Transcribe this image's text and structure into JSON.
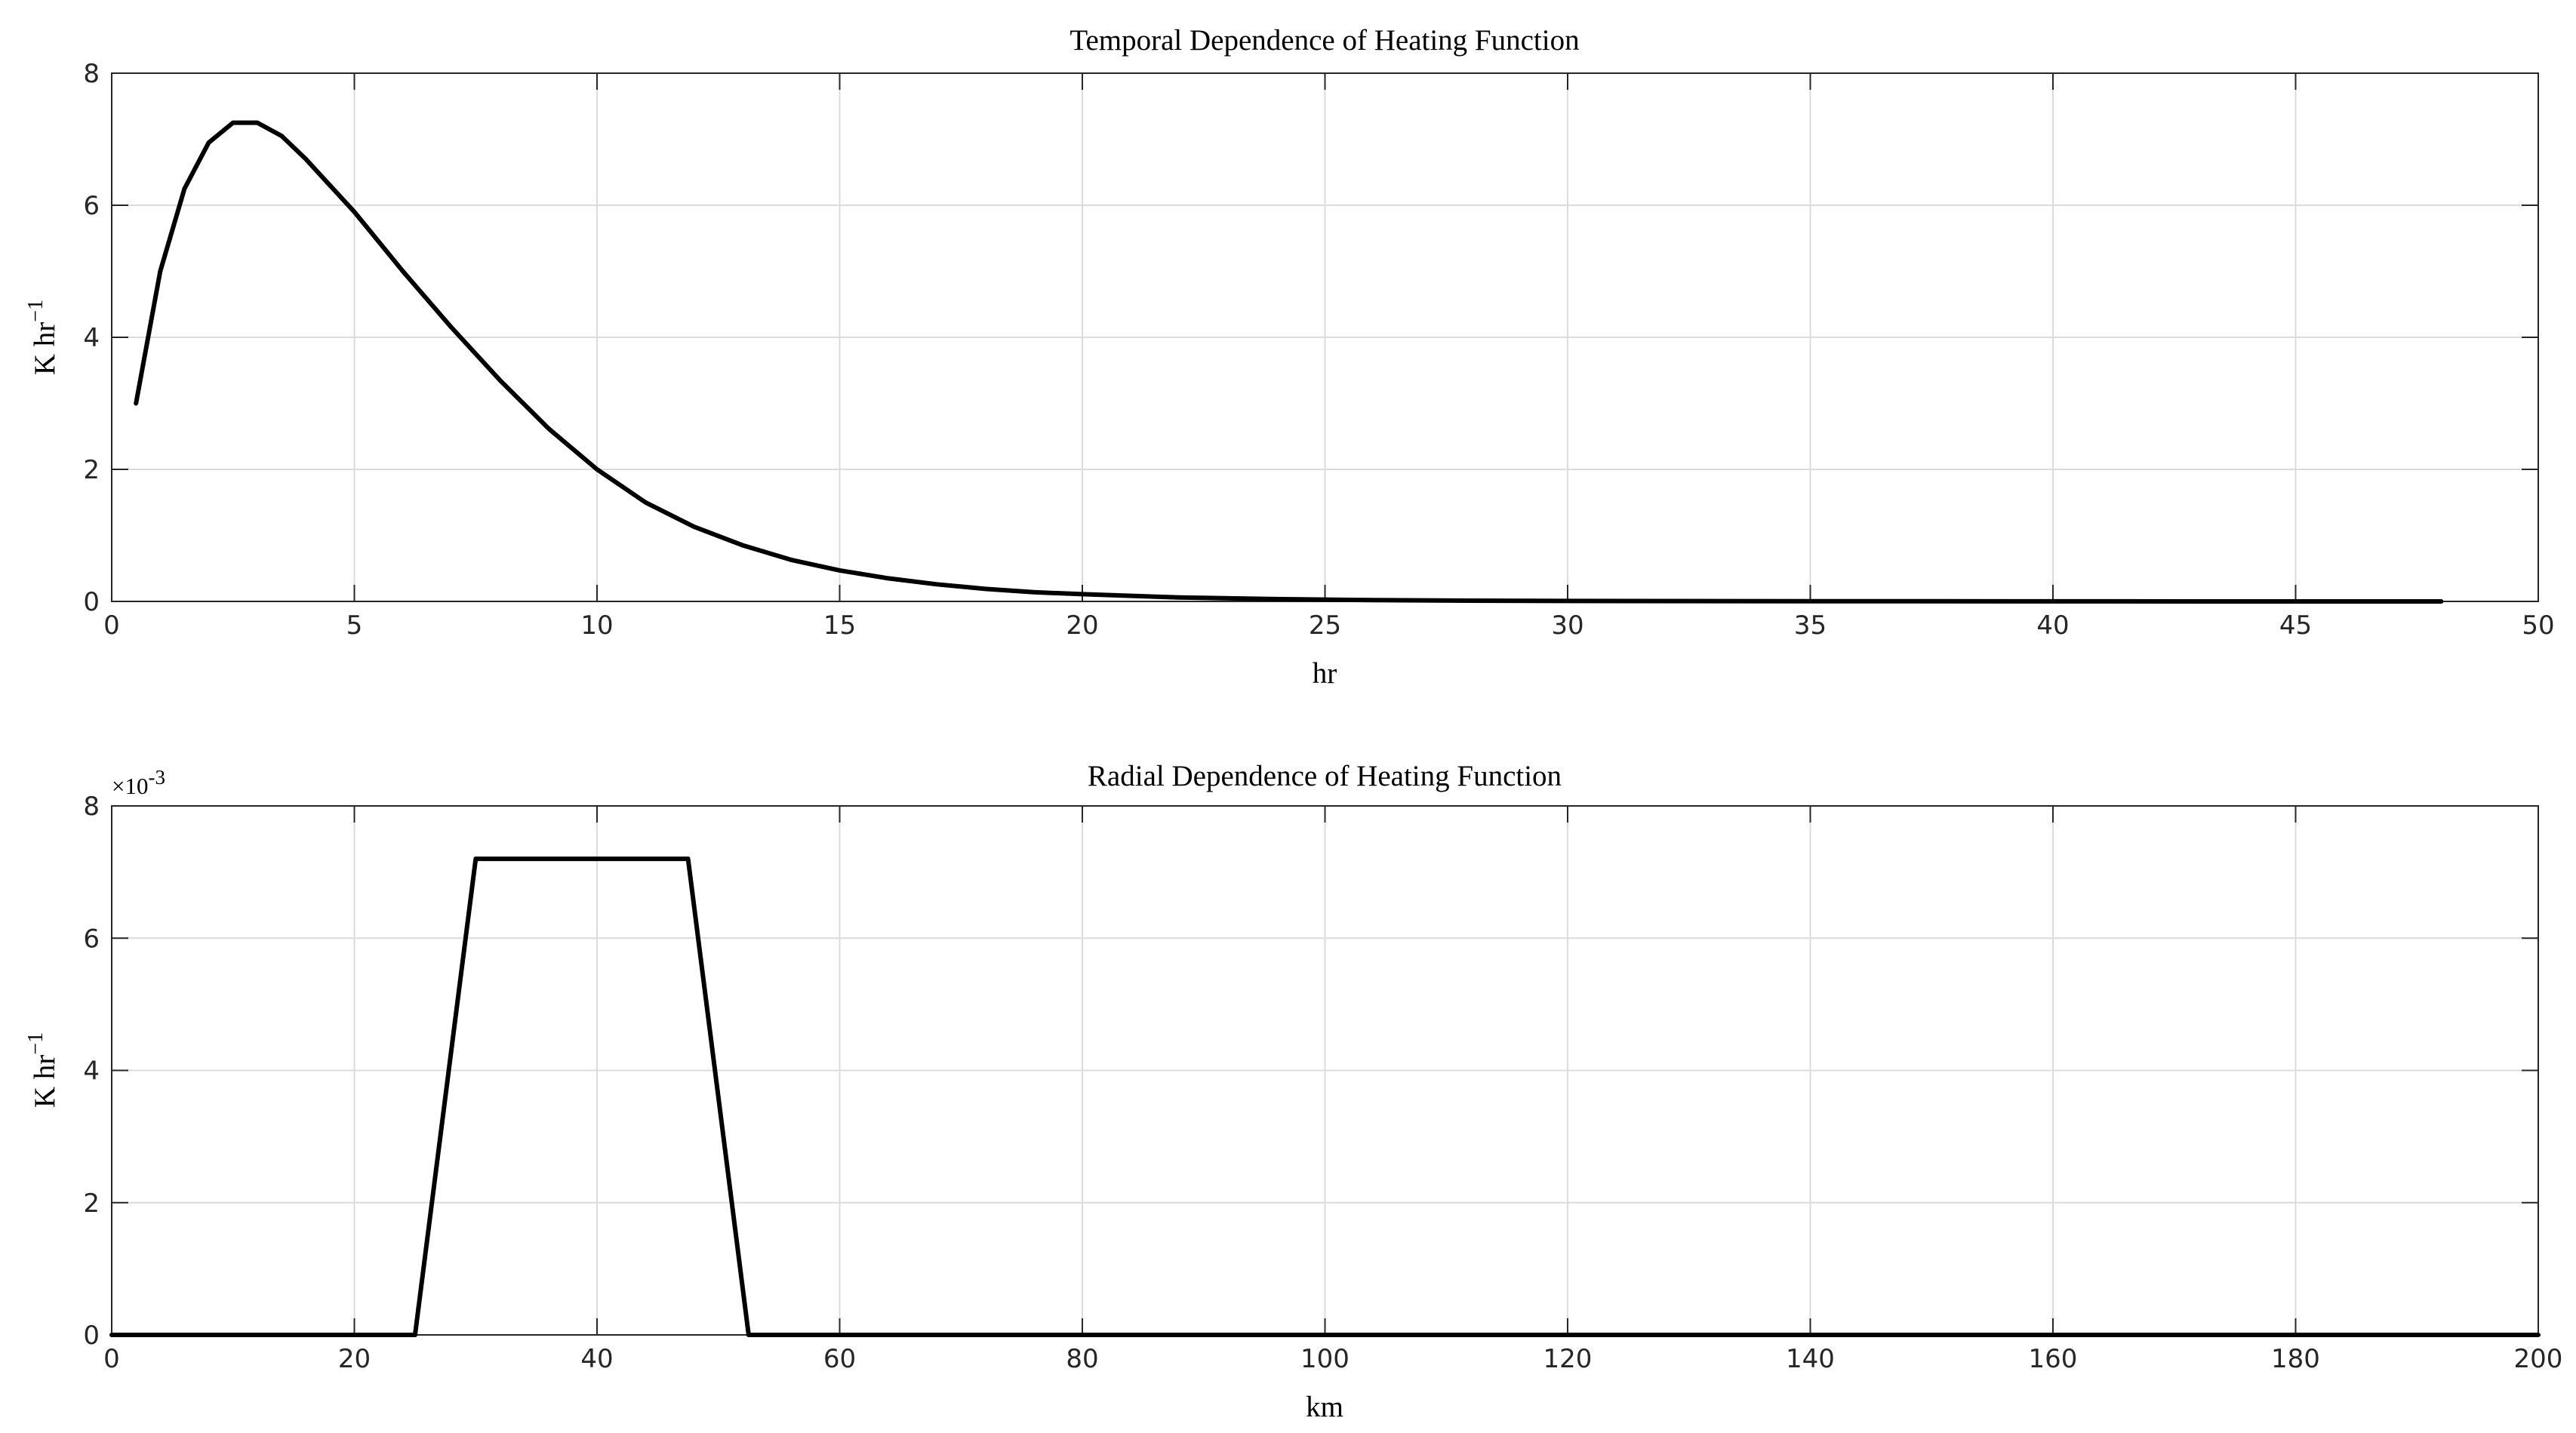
{
  "chart_data": [
    {
      "type": "line",
      "title": "Temporal Dependence of Heating Function",
      "xlabel": "hr",
      "ylabel": "K hr",
      "ylabel_superscript": "−1",
      "xlim": [
        0,
        50
      ],
      "ylim": [
        0,
        8
      ],
      "xticks": [
        0,
        5,
        10,
        15,
        20,
        25,
        30,
        35,
        40,
        45,
        50
      ],
      "yticks": [
        0,
        2,
        4,
        6,
        8
      ],
      "grid": true,
      "series": [
        {
          "color": "#000000",
          "x": [
            0.5,
            1,
            1.5,
            2,
            2.5,
            3,
            3.5,
            4,
            4.5,
            5,
            6,
            7,
            8,
            9,
            10,
            11,
            12,
            13,
            14,
            15,
            16,
            17,
            18,
            19,
            20,
            22,
            24,
            26,
            28,
            30,
            35,
            40,
            45,
            48
          ],
          "y": [
            3.0,
            5.0,
            6.25,
            6.95,
            7.25,
            7.25,
            7.05,
            6.7,
            6.3,
            5.9,
            5.0,
            4.15,
            3.35,
            2.62,
            2.0,
            1.5,
            1.13,
            0.85,
            0.63,
            0.47,
            0.35,
            0.26,
            0.19,
            0.14,
            0.11,
            0.06,
            0.035,
            0.02,
            0.012,
            0.007,
            0.003,
            0.001,
            0.0005,
            0.0003
          ]
        }
      ]
    },
    {
      "type": "line",
      "title": "Radial Dependence of Heating Function",
      "xlabel": "km",
      "ylabel": "K hr",
      "ylabel_superscript": "−1",
      "exponent_label": "×10",
      "exponent_value": "-3",
      "xlim": [
        0,
        200
      ],
      "ylim": [
        0,
        8
      ],
      "xticks": [
        0,
        20,
        40,
        60,
        80,
        100,
        120,
        140,
        160,
        180,
        200
      ],
      "yticks": [
        0,
        2,
        4,
        6,
        8
      ],
      "grid": true,
      "series": [
        {
          "color": "#000000",
          "x": [
            0,
            25,
            30,
            47.5,
            52.5,
            200
          ],
          "y": [
            0,
            0,
            7.2,
            7.2,
            0,
            0
          ]
        }
      ]
    }
  ]
}
